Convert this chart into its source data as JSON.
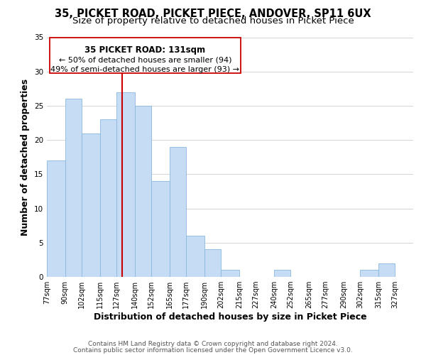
{
  "title": "35, PICKET ROAD, PICKET PIECE, ANDOVER, SP11 6UX",
  "subtitle": "Size of property relative to detached houses in Picket Piece",
  "xlabel": "Distribution of detached houses by size in Picket Piece",
  "ylabel": "Number of detached properties",
  "footer_line1": "Contains HM Land Registry data © Crown copyright and database right 2024.",
  "footer_line2": "Contains public sector information licensed under the Open Government Licence v3.0.",
  "bar_edges": [
    77,
    90,
    102,
    115,
    127,
    140,
    152,
    165,
    177,
    190,
    202,
    215,
    227,
    240,
    252,
    265,
    277,
    290,
    302,
    315,
    327,
    340
  ],
  "bar_heights": [
    17,
    26,
    21,
    23,
    27,
    25,
    14,
    19,
    6,
    4,
    1,
    0,
    0,
    1,
    0,
    0,
    0,
    0,
    1,
    2,
    0
  ],
  "bar_color": "#c6dcf5",
  "bar_edgecolor": "#8ab8e0",
  "property_line_x": 131,
  "property_line_color": "#cc0000",
  "annotation_title": "35 PICKET ROAD: 131sqm",
  "annotation_line1": "← 50% of detached houses are smaller (94)",
  "annotation_line2": "49% of semi-detached houses are larger (93) →",
  "annotation_box_edgecolor": "#cc0000",
  "annotation_box_facecolor": "#ffffff",
  "ylim": [
    0,
    35
  ],
  "yticks": [
    0,
    5,
    10,
    15,
    20,
    25,
    30,
    35
  ],
  "xlim": [
    77,
    340
  ],
  "tick_labels": [
    "77sqm",
    "90sqm",
    "102sqm",
    "115sqm",
    "127sqm",
    "140sqm",
    "152sqm",
    "165sqm",
    "177sqm",
    "190sqm",
    "202sqm",
    "215sqm",
    "227sqm",
    "240sqm",
    "252sqm",
    "265sqm",
    "277sqm",
    "290sqm",
    "302sqm",
    "315sqm",
    "327sqm"
  ],
  "background_color": "#ffffff",
  "grid_color": "#d4d4d4",
  "title_fontsize": 10.5,
  "subtitle_fontsize": 9.5,
  "axis_label_fontsize": 9,
  "tick_fontsize": 7,
  "annotation_title_fontsize": 8.5,
  "annotation_line_fontsize": 8,
  "footer_fontsize": 6.5
}
